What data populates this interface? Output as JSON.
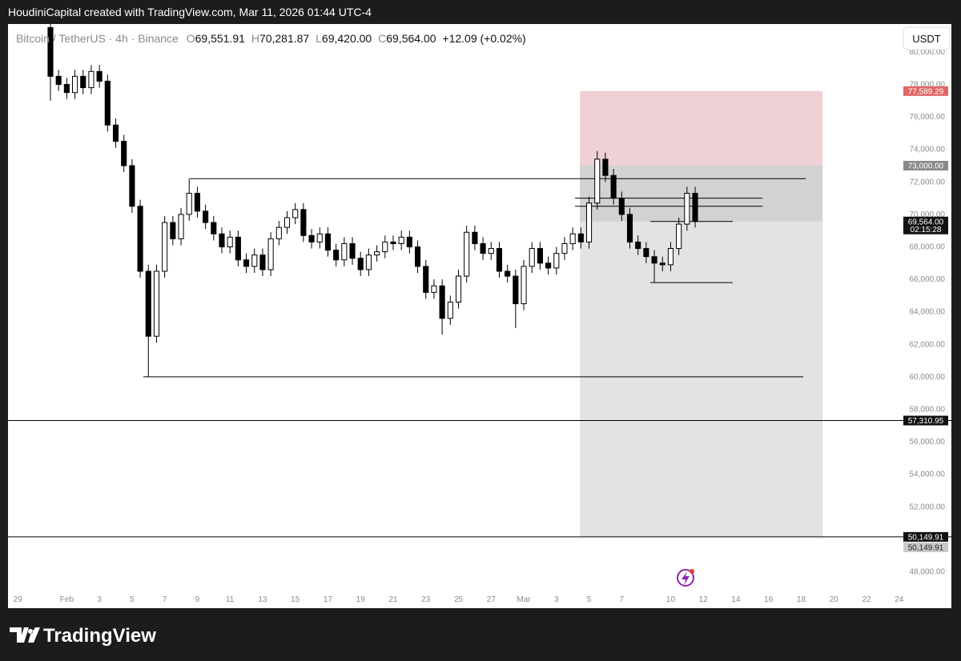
{
  "header": {
    "attribution": "HoudiniCapital created with TradingView.com, Mar 11, 2026 01:44 UTC-4"
  },
  "legend": {
    "symbol": "Bitcoin / TetherUS · 4h · Binance",
    "o_label": "O",
    "open": "69,551.91",
    "h_label": "H",
    "high": "70,281.87",
    "l_label": "L",
    "low": "69,420.00",
    "c_label": "C",
    "close": "69,564.00",
    "change": "+12.09 (+0.02%)"
  },
  "currency_button": "USDT",
  "footer": {
    "brand": "TradingView"
  },
  "chart_data": {
    "type": "candlestick",
    "x": [
      31,
      31.5,
      32,
      32.5,
      33,
      33.5,
      34,
      34.5,
      35,
      35.5,
      36,
      36.5,
      37,
      37.5,
      38,
      38.5,
      39,
      39.5,
      40,
      40.5,
      41,
      41.5,
      42,
      42.5,
      43,
      43.5,
      44,
      44.5,
      45,
      45.5,
      46,
      46.5,
      47,
      47.5,
      48,
      48.5,
      49,
      49.5,
      50,
      50.5,
      51,
      51.5,
      52,
      52.5,
      53,
      53.5,
      54,
      54.5,
      55,
      55.5,
      56,
      56.5,
      57,
      57.5,
      58,
      58.5,
      59,
      59.5,
      60,
      60.5,
      61,
      61.5,
      62,
      62.5,
      63,
      63.5,
      64,
      64.5,
      65,
      65.5,
      66,
      66.5,
      67,
      67.5,
      68,
      68.5,
      69,
      69.5,
      70,
      70.5
    ],
    "open": [
      81500,
      78500,
      78000,
      77500,
      78500,
      77800,
      78800,
      78200,
      75500,
      74500,
      73000,
      70500,
      66500,
      62500,
      66500,
      69500,
      68500,
      70000,
      71300,
      70200,
      69500,
      68800,
      68000,
      68600,
      67200,
      66800,
      67500,
      66600,
      68500,
      69200,
      69800,
      70300,
      68700,
      68300,
      68800,
      67800,
      67200,
      68200,
      67300,
      66600,
      67500,
      67700,
      68300,
      68200,
      68600,
      68000,
      66800,
      65200,
      65600,
      63600,
      64600,
      66200,
      68900,
      68200,
      67600,
      67900,
      66500,
      66200,
      64500,
      66800,
      67900,
      67000,
      66700,
      67600,
      68200,
      68800,
      68300,
      70700,
      73400,
      72400,
      71000,
      70000,
      68300,
      67900,
      67400,
      67000,
      66900,
      67900,
      69400,
      71300
    ],
    "high": [
      81900,
      78900,
      78400,
      78900,
      78900,
      79200,
      79200,
      78600,
      75900,
      74900,
      73400,
      70900,
      66900,
      66900,
      69900,
      69900,
      70400,
      72200,
      71700,
      70600,
      69900,
      69200,
      69000,
      69000,
      67600,
      67900,
      67900,
      68900,
      69600,
      70200,
      70700,
      70700,
      69100,
      69200,
      69200,
      68200,
      68600,
      68600,
      67700,
      67900,
      68100,
      68700,
      68700,
      69000,
      69000,
      68400,
      67200,
      66000,
      66000,
      65000,
      66600,
      69300,
      69300,
      68600,
      68300,
      68300,
      66900,
      66600,
      67200,
      68300,
      68300,
      67400,
      68000,
      68600,
      69200,
      69200,
      71100,
      73900,
      73800,
      72800,
      71400,
      70400,
      68700,
      68300,
      67800,
      67400,
      68300,
      69800,
      71700,
      71700
    ],
    "low": [
      77000,
      77600,
      77100,
      77100,
      77400,
      77400,
      77800,
      75100,
      74100,
      72600,
      70100,
      66100,
      60000,
      62100,
      66100,
      68100,
      68100,
      69600,
      69800,
      69100,
      68400,
      67600,
      67600,
      66800,
      66400,
      66400,
      66200,
      66200,
      68100,
      68800,
      69400,
      68300,
      67900,
      67900,
      67400,
      66800,
      66800,
      66900,
      66200,
      66200,
      67100,
      67300,
      67800,
      67800,
      67600,
      66400,
      64800,
      64800,
      62600,
      63200,
      64200,
      65800,
      67800,
      67200,
      67200,
      66100,
      65800,
      63000,
      64100,
      66400,
      66600,
      66300,
      66300,
      67200,
      67800,
      67900,
      67900,
      70300,
      72000,
      70600,
      69600,
      67900,
      67500,
      67000,
      65800,
      66500,
      66500,
      67500,
      69000,
      69200
    ],
    "close": [
      78500,
      78000,
      77500,
      78500,
      77800,
      78800,
      78200,
      75500,
      74500,
      73000,
      70500,
      66500,
      62500,
      66500,
      69500,
      68500,
      70000,
      71300,
      70200,
      69500,
      68800,
      68000,
      68600,
      67200,
      66800,
      67500,
      66600,
      68500,
      69200,
      69800,
      70300,
      68700,
      68300,
      68800,
      67800,
      67200,
      68200,
      67300,
      66600,
      67500,
      67700,
      68300,
      68200,
      68600,
      68000,
      66800,
      65200,
      65600,
      63600,
      64600,
      66200,
      68900,
      68200,
      67600,
      67900,
      66500,
      66200,
      64500,
      66800,
      67900,
      67000,
      66700,
      67600,
      68200,
      68800,
      68300,
      70700,
      73400,
      72400,
      71000,
      70000,
      68300,
      67900,
      67400,
      67000,
      66900,
      67900,
      69400,
      71300,
      69564
    ],
    "up_color": "#ffffff",
    "down_color": "#000000",
    "border_color": "#000000",
    "xlim": [
      28.4,
      86.2
    ],
    "xticks": [
      29,
      {
        "value": 32,
        "label": "Feb"
      },
      {
        "value": 34,
        "label": "3"
      },
      {
        "value": 36,
        "label": "5"
      },
      {
        "value": 38,
        "label": "7"
      },
      {
        "value": 40,
        "label": "9"
      },
      {
        "value": 42,
        "label": "11"
      },
      {
        "value": 44,
        "label": "13"
      },
      {
        "value": 46,
        "label": "15"
      },
      {
        "value": 48,
        "label": "17"
      },
      {
        "value": 50,
        "label": "19"
      },
      {
        "value": 52,
        "label": "21"
      },
      {
        "value": 54,
        "label": "23"
      },
      {
        "value": 56,
        "label": "25"
      },
      {
        "value": 58,
        "label": "27"
      },
      {
        "value": 60,
        "label": "Mar"
      },
      {
        "value": 62,
        "label": "3"
      },
      {
        "value": 64,
        "label": "5"
      },
      {
        "value": 66,
        "label": "7"
      },
      {
        "value": 69,
        "label": "10"
      },
      {
        "value": 71,
        "label": "12"
      },
      {
        "value": 73,
        "label": "14"
      },
      {
        "value": 75,
        "label": "16"
      },
      {
        "value": 77,
        "label": "18"
      },
      {
        "value": 79,
        "label": "20"
      },
      {
        "value": 81,
        "label": "22"
      },
      {
        "value": 83,
        "label": "24"
      }
    ],
    "ylim": [
      45760,
      81720
    ],
    "yticks": [
      {
        "value": 48000,
        "label": "48,000.00"
      },
      {
        "value": 50000,
        "label": "50,000.00"
      },
      {
        "value": 52000,
        "label": "52,000.00"
      },
      {
        "value": 54000,
        "label": "54,000.00"
      },
      {
        "value": 56000,
        "label": "56,000.00"
      },
      {
        "value": 58000,
        "label": "58,000.00"
      },
      {
        "value": 60000,
        "label": "60,000.00"
      },
      {
        "value": 62000,
        "label": "62,000.00"
      },
      {
        "value": 64000,
        "label": "64,000.00"
      },
      {
        "value": 66000,
        "label": "66,000.00"
      },
      {
        "value": 68000,
        "label": "68,000.00"
      },
      {
        "value": 70000,
        "label": "70,000.00"
      },
      {
        "value": 72000,
        "label": "72,000.00"
      },
      {
        "value": 74000,
        "label": "74,000.00"
      },
      {
        "value": 76000,
        "label": "76,000.00"
      },
      {
        "value": 78000,
        "label": "78,000.00"
      },
      {
        "value": 80000,
        "label": "80,000.00"
      }
    ],
    "levels": [
      {
        "value": 72200,
        "from": 39.54,
        "to": 77.28
      },
      {
        "value": 71000,
        "from": 63.14,
        "to": 74.63
      },
      {
        "value": 70500,
        "from": 63.14,
        "to": 74.63
      },
      {
        "value": 65800,
        "from": 67.76,
        "to": 72.81
      },
      {
        "value": 60000,
        "from": 36.69,
        "to": 77.13
      },
      {
        "value": 57310.95
      },
      {
        "value": 50149.91
      }
    ],
    "level_color": "#000000",
    "position": {
      "from": 63.44,
      "to": 78.31,
      "stop": {
        "value": 77589.29,
        "label": "77,589.29"
      },
      "entry": {
        "value": 73000,
        "label": "73,000.00"
      },
      "target": {
        "value": 50149.91,
        "label": "50,149.91"
      },
      "stop_color": "#efd0d4",
      "target_color": "#e3e3e3",
      "open_color": "#d2d2d2"
    },
    "last_price": {
      "value": 69564,
      "label": "69,564.00",
      "countdown": "02:15:28",
      "from": 67.76,
      "to": 72.81
    },
    "alert": {
      "value": 57310.95,
      "label": "57,310.95"
    },
    "target_badge": {
      "value": 50149.91,
      "label": "50,149.91"
    }
  }
}
